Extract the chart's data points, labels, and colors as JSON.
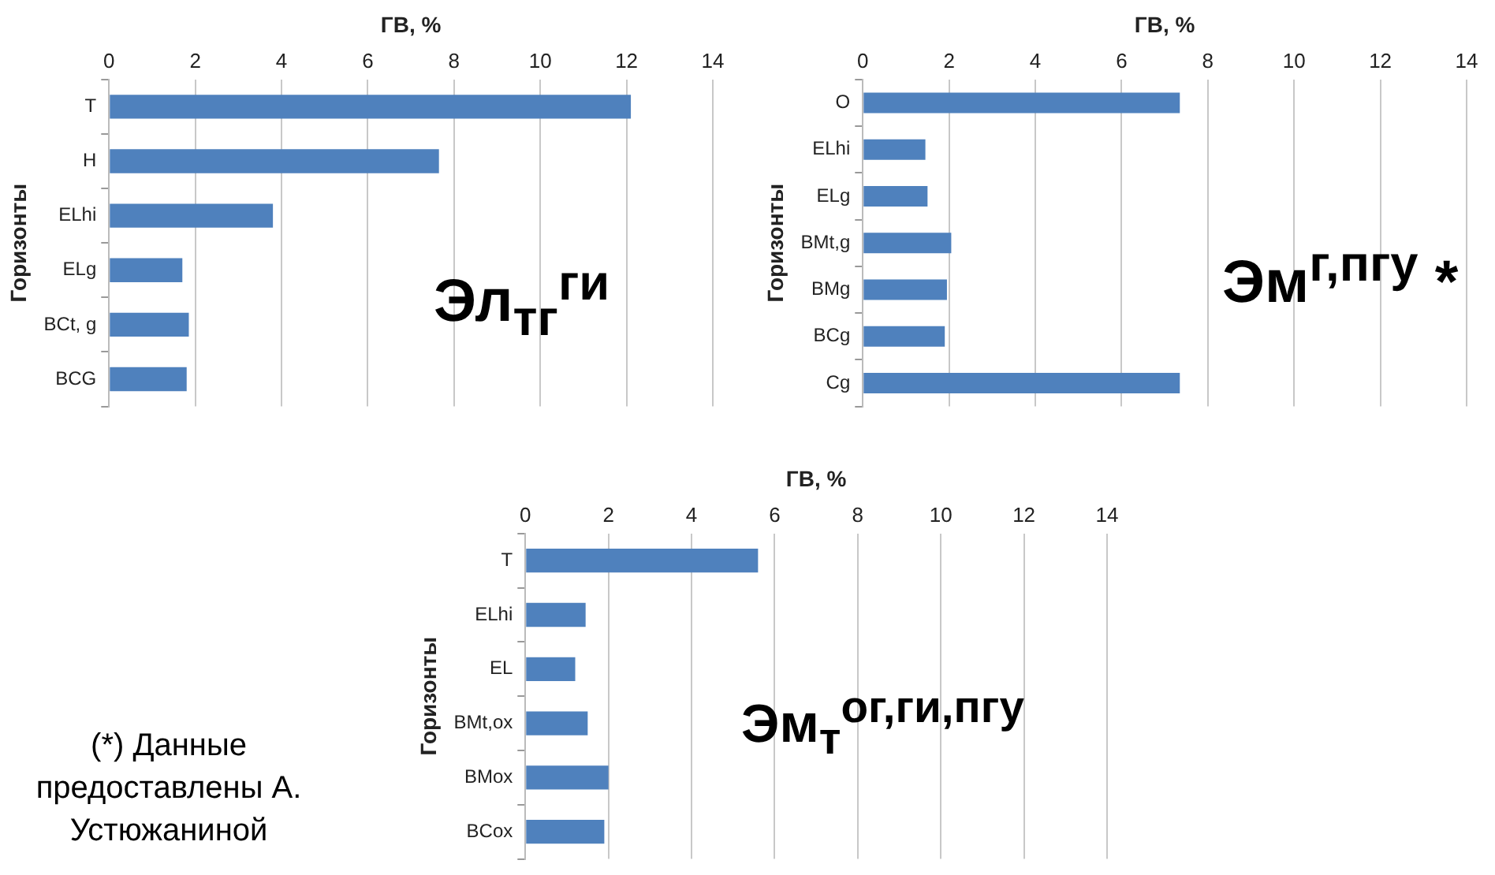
{
  "chart_data": [
    {
      "type": "bar",
      "orientation": "horizontal",
      "xlabel": "ГВ, %",
      "ylabel": "Горизонты",
      "categories": [
        "T",
        "H",
        "ELhi",
        "ELg",
        "BCt, g",
        "BCG"
      ],
      "values": [
        12.1,
        7.65,
        3.8,
        1.7,
        1.85,
        1.8
      ],
      "color": "#4f81bd",
      "xlim": [
        0,
        14
      ],
      "xticks": [
        0,
        2,
        4,
        6,
        8,
        10,
        12,
        14
      ],
      "grid": "x",
      "annotations": [
        "Эл$_{тг}$$^{ги}$"
      ]
    },
    {
      "type": "bar",
      "orientation": "horizontal",
      "xlabel": "ГВ, %",
      "ylabel": "Горизонты",
      "categories": [
        "O",
        "ELhi",
        "ELg",
        "BMt,g",
        "BMg",
        "BCg",
        "Cg"
      ],
      "values": [
        7.35,
        1.45,
        1.5,
        2.05,
        1.95,
        1.9,
        7.35
      ],
      "color": "#4f81bd",
      "xlim": [
        0,
        14
      ],
      "xticks": [
        0,
        2,
        4,
        6,
        8,
        10,
        12,
        14
      ],
      "grid": "x",
      "annotations": [
        "Эм$^{г,пгу}$ *"
      ]
    },
    {
      "type": "bar",
      "orientation": "horizontal",
      "xlabel": "ГВ, %",
      "ylabel": "Горизонты",
      "categories": [
        "T",
        "ELhi",
        "EL",
        "BMt,ox",
        "BMox",
        "BCox"
      ],
      "values": [
        5.6,
        1.45,
        1.2,
        1.5,
        2.0,
        1.9
      ],
      "color": "#4f81bd",
      "xlim": [
        0,
        14
      ],
      "xticks": [
        0,
        2,
        4,
        6,
        8,
        10,
        12,
        14
      ],
      "grid": "x",
      "annotations": [
        "Эм$_{т}$$^{ог,ги,пгу}$",
        "(*) Данные предоставлены А. Устюжаниной"
      ]
    }
  ]
}
